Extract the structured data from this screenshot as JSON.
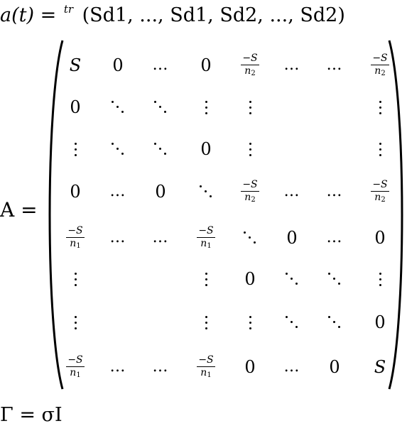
{
  "line_a": {
    "lhs": "a(t) =",
    "sup": "tr",
    "rhs": "(Sd1, ..., Sd1, Sd2, ..., Sd2)"
  },
  "label_A": "A =",
  "matrix": {
    "rows": [
      [
        "S",
        "0",
        "…",
        "0",
        "−S/n2",
        "…",
        "…",
        "−S/n2"
      ],
      [
        "0",
        "⋱",
        "⋱",
        "⋮",
        "⋮",
        "",
        "",
        "⋮"
      ],
      [
        "⋮",
        "⋱",
        "⋱",
        "0",
        "⋮",
        "",
        "",
        "⋮"
      ],
      [
        "0",
        "…",
        "0",
        "⋱",
        "−S/n2",
        "…",
        "…",
        "−S/n2"
      ],
      [
        "−S/n1",
        "…",
        "…",
        "−S/n1",
        "⋱",
        "0",
        "…",
        "0"
      ],
      [
        "⋮",
        "",
        "",
        "⋮",
        "0",
        "⋱",
        "⋱",
        "⋮"
      ],
      [
        "⋮",
        "",
        "",
        "⋮",
        "⋮",
        "⋱",
        "⋱",
        "0"
      ],
      [
        "−S/n1",
        "…",
        "…",
        "−S/n1",
        "0",
        "…",
        "0",
        "S"
      ]
    ]
  },
  "line_gamma": "Γ = σI"
}
